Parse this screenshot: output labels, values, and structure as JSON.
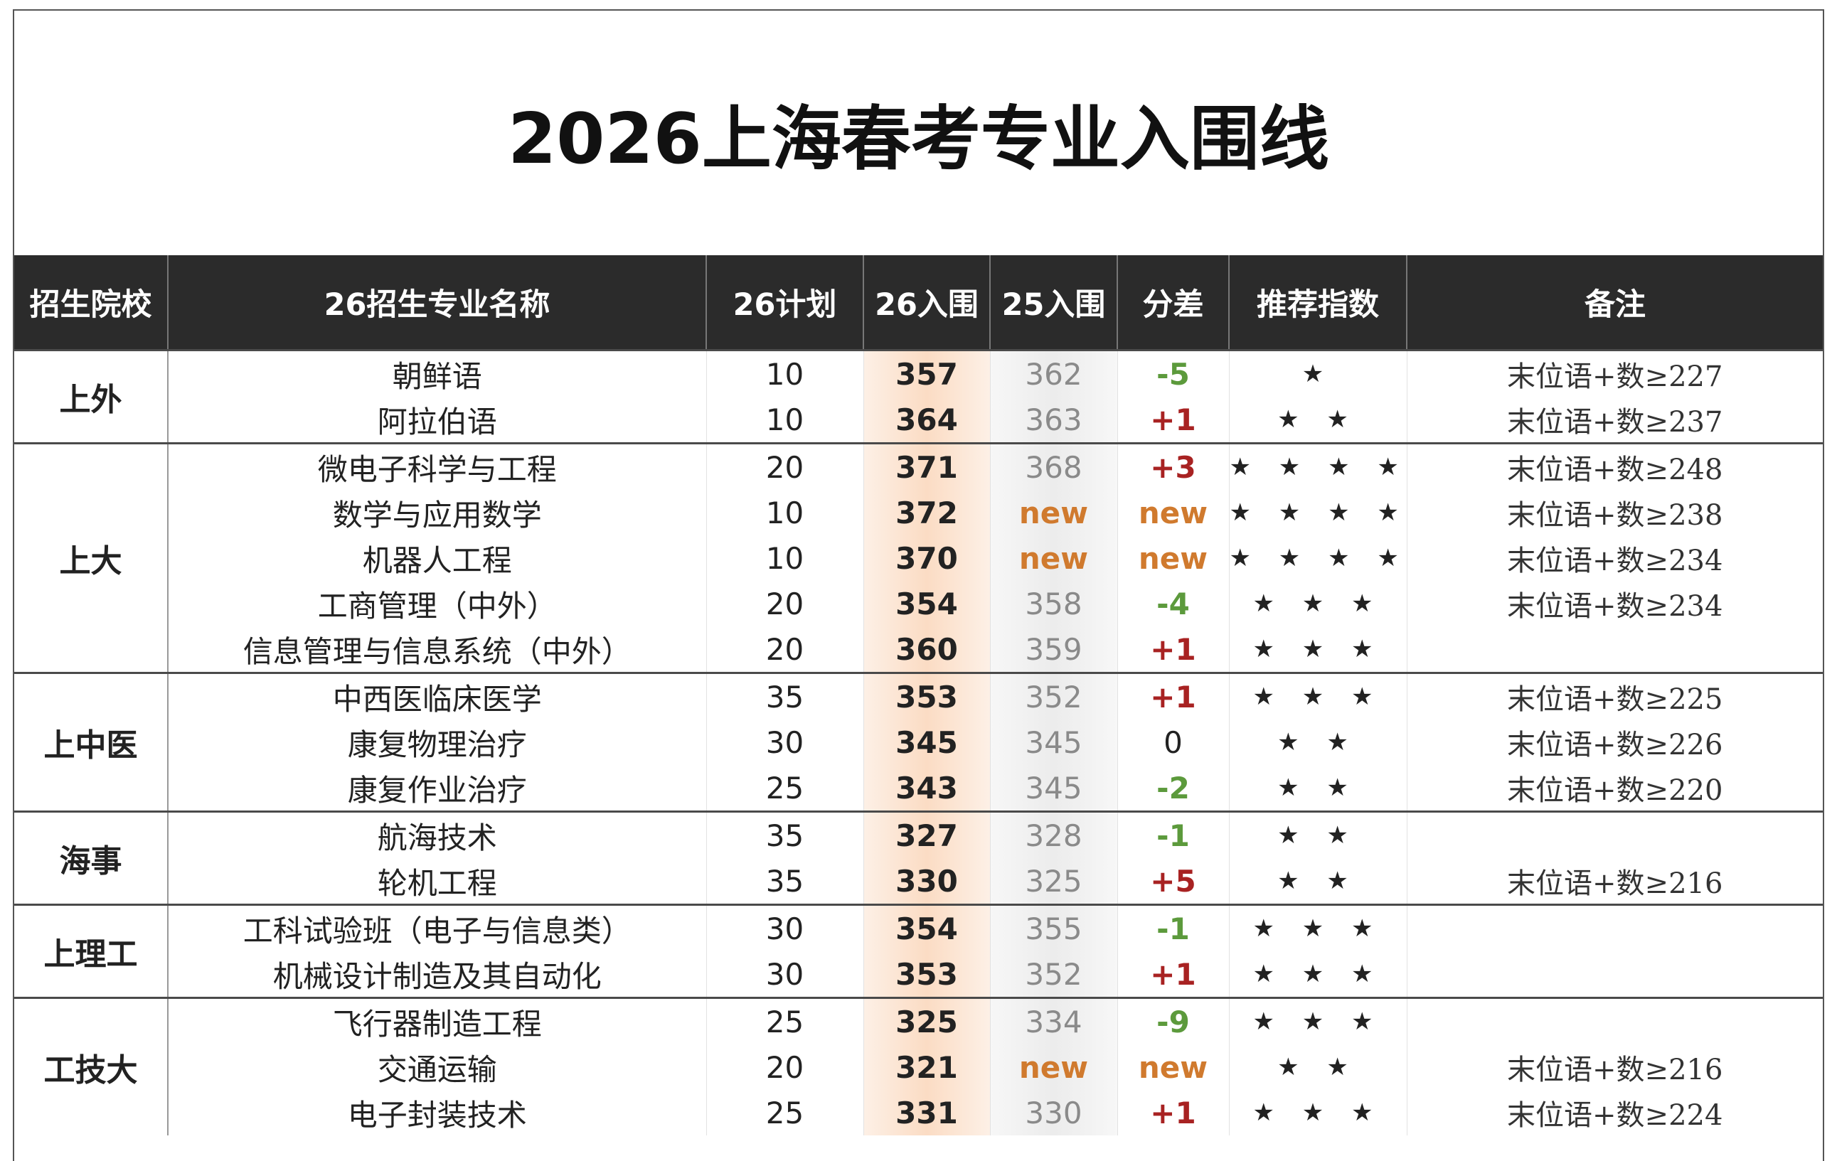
{
  "title": "2026上海春考专业入围线",
  "header": {
    "columns": [
      "招生院校",
      "26招生专业名称",
      "26计划",
      "26入围",
      "25入围",
      "分差",
      "推荐指数",
      "备注"
    ]
  },
  "groups": [
    {
      "school": "上外",
      "rows": [
        {
          "major": "朝鲜语",
          "plan": "10",
          "in26": "357",
          "in25": "362",
          "diff": "-5",
          "stars": "★",
          "note": "末位语+数≥227"
        },
        {
          "major": "阿拉伯语",
          "plan": "10",
          "in26": "364",
          "in25": "363",
          "diff": "+1",
          "stars": "★ ★",
          "note": "末位语+数≥237"
        }
      ]
    },
    {
      "school": "上大",
      "rows": [
        {
          "major": "微电子科学与工程",
          "plan": "20",
          "in26": "371",
          "in25": "368",
          "diff": "+3",
          "stars": "★ ★ ★ ★",
          "note": "末位语+数≥248"
        },
        {
          "major": "数学与应用数学",
          "plan": "10",
          "in26": "372",
          "in25": "new",
          "diff": "new",
          "stars": "★ ★ ★ ★",
          "note": "末位语+数≥238"
        },
        {
          "major": "机器人工程",
          "plan": "10",
          "in26": "370",
          "in25": "new",
          "diff": "new",
          "stars": "★ ★ ★ ★",
          "note": "末位语+数≥234"
        },
        {
          "major": "工商管理（中外）",
          "plan": "20",
          "in26": "354",
          "in25": "358",
          "diff": "-4",
          "stars": "★ ★ ★",
          "note": "末位语+数≥234"
        },
        {
          "major": "信息管理与信息系统（中外）",
          "plan": "20",
          "in26": "360",
          "in25": "359",
          "diff": "+1",
          "stars": "★ ★ ★"
        }
      ]
    },
    {
      "school": "上中医",
      "rows": [
        {
          "major": "中西医临床医学",
          "plan": "35",
          "in26": "353",
          "in25": "352",
          "diff": "+1",
          "stars": "★ ★ ★",
          "note": "末位语+数≥225"
        },
        {
          "major": "康复物理治疗",
          "plan": "30",
          "in26": "345",
          "in25": "345",
          "diff": "0",
          "stars": "★ ★",
          "note": "末位语+数≥226"
        },
        {
          "major": "康复作业治疗",
          "plan": "25",
          "in26": "343",
          "in25": "345",
          "diff": "-2",
          "stars": "★ ★",
          "note": "末位语+数≥220"
        }
      ]
    },
    {
      "school": "海事",
      "rows": [
        {
          "major": "航海技术",
          "plan": "35",
          "in26": "327",
          "in25": "328",
          "diff": "-1",
          "stars": "★ ★"
        },
        {
          "major": "轮机工程",
          "plan": "35",
          "in26": "330",
          "in25": "325",
          "diff": "+5",
          "stars": "★ ★",
          "note": "末位语+数≥216"
        }
      ]
    },
    {
      "school": "上理工",
      "rows": [
        {
          "major": "工科试验班（电子与信息类）",
          "plan": "30",
          "in26": "354",
          "in25": "355",
          "diff": "-1",
          "stars": "★ ★ ★"
        },
        {
          "major": "机械设计制造及其自动化",
          "plan": "30",
          "in26": "353",
          "in25": "352",
          "diff": "+1",
          "stars": "★ ★ ★"
        }
      ]
    },
    {
      "school": "工技大",
      "rows": [
        {
          "major": "飞行器制造工程",
          "plan": "25",
          "in26": "325",
          "in25": "334",
          "diff": "-9",
          "stars": "★ ★ ★"
        },
        {
          "major": "交通运输",
          "plan": "20",
          "in26": "321",
          "in25": "new",
          "diff": "new",
          "stars": "★ ★",
          "note": "末位语+数≥216"
        },
        {
          "major": "电子封装技术",
          "plan": "25",
          "in26": "331",
          "in25": "330",
          "diff": "+1",
          "stars": "★ ★ ★",
          "note": "末位语+数≥224"
        }
      ]
    }
  ]
}
